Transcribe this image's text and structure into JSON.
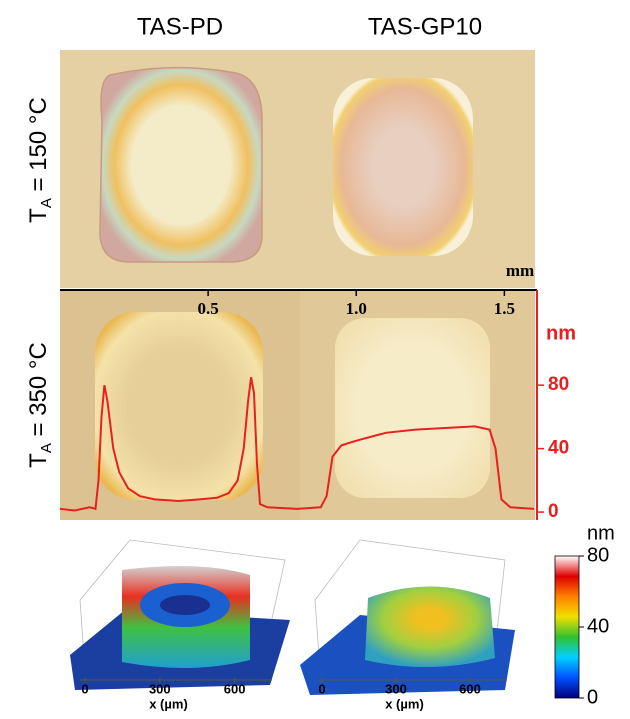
{
  "figure": {
    "columns": [
      "TAS-PD",
      "TAS-GP10"
    ],
    "rows": [
      {
        "symbol": "T",
        "subscript": "A",
        "condition": " = 150 °C"
      },
      {
        "symbol": "T",
        "subscript": "A",
        "condition": " = 350 °C"
      }
    ]
  },
  "chart_data": [
    {
      "type": "line",
      "x_label": "mm",
      "y_label": "nm",
      "xlim": [
        0,
        1.6
      ],
      "xticks": [
        0.5,
        {
          "value": 1,
          "label": "1.0"
        },
        1.5
      ],
      "ylim": [
        -5,
        140
      ],
      "yticks": [
        0,
        40,
        80
      ],
      "axis_color": "#e82020",
      "series": [
        {
          "color": "#e82020",
          "x": [
            0,
            0.05,
            0.1,
            0.12,
            0.13,
            0.14,
            0.15,
            0.16,
            0.18,
            0.2,
            0.23,
            0.27,
            0.32,
            0.4,
            0.47,
            0.53,
            0.57,
            0.6,
            0.62,
            0.635,
            0.645,
            0.655,
            0.665,
            0.675,
            0.7,
            0.8,
            0.88,
            0.9,
            0.92,
            0.95,
            1.0,
            1.1,
            1.2,
            1.3,
            1.4,
            1.45,
            1.47,
            1.49,
            1.52,
            1.6
          ],
          "values": [
            2,
            1,
            3,
            2,
            20,
            60,
            80,
            70,
            40,
            25,
            15,
            10,
            8,
            7,
            8,
            9,
            12,
            20,
            40,
            70,
            85,
            75,
            30,
            5,
            3,
            2,
            3,
            10,
            35,
            42,
            45,
            50,
            52,
            53,
            54,
            52,
            40,
            8,
            3,
            2
          ]
        }
      ]
    },
    {
      "type": "surface",
      "x_label": "x (µm)",
      "xlim": [
        0,
        750
      ],
      "xticks": [
        0,
        300,
        600
      ]
    },
    {
      "type": "surface",
      "x_label": "x (µm)",
      "xlim": [
        0,
        750
      ],
      "xticks": [
        0,
        300,
        600
      ]
    },
    {
      "type": "colorbar",
      "label": "nm",
      "ylim": [
        0,
        80
      ],
      "yticks": [
        0,
        40,
        80
      ],
      "colors": [
        "#00007a",
        "#0050ff",
        "#00d0ff",
        "#30c030",
        "#f0e000",
        "#ff8000",
        "#e00000",
        "#ffffff"
      ]
    }
  ]
}
